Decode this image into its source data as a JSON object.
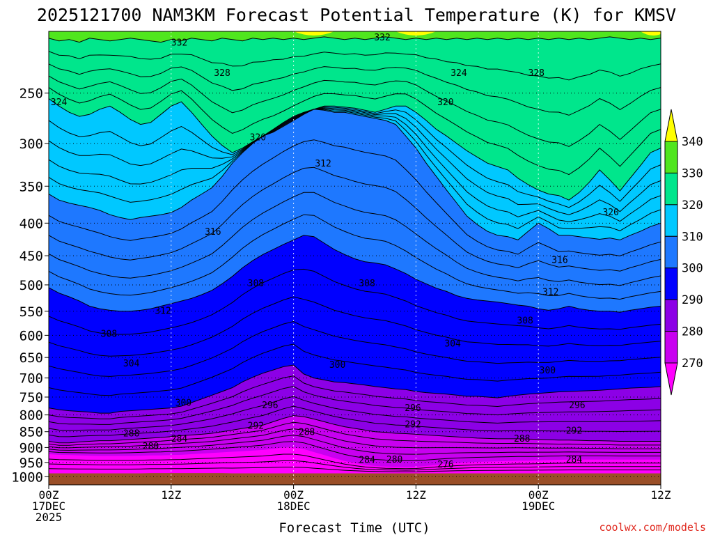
{
  "chart_data": {
    "type": "contour",
    "title": "2025121700 NAM3KM Forecast Potential Temperature (K) for KMSV",
    "xlabel": "Forecast Time (UTC)",
    "ylabel": "",
    "credit": "coolwx.com/models",
    "x_hours": [
      0,
      12,
      24,
      36,
      48,
      60
    ],
    "x_tick_labels": [
      {
        "hour": 0,
        "line1": "00Z",
        "line2": "17DEC",
        "line3": "2025"
      },
      {
        "hour": 12,
        "line1": "12Z",
        "line2": "",
        "line3": ""
      },
      {
        "hour": 24,
        "line1": "00Z",
        "line2": "18DEC",
        "line3": ""
      },
      {
        "hour": 36,
        "line1": "12Z",
        "line2": "",
        "line3": ""
      },
      {
        "hour": 48,
        "line1": "00Z",
        "line2": "19DEC",
        "line3": ""
      },
      {
        "hour": 60,
        "line1": "12Z",
        "line2": "",
        "line3": ""
      }
    ],
    "xlim": [
      0,
      60
    ],
    "y_pressure_ticks": [
      250,
      300,
      350,
      400,
      450,
      500,
      550,
      600,
      650,
      700,
      750,
      800,
      850,
      900,
      950,
      1000
    ],
    "ylim_hpa": [
      200,
      1030
    ],
    "surface_hpa": 985,
    "colorbar": {
      "levels": [
        270,
        280,
        290,
        300,
        310,
        320,
        330,
        340
      ],
      "colors": [
        "#ff00ff",
        "#c800f0",
        "#8c00e6",
        "#0000ff",
        "#1e78ff",
        "#00c8ff",
        "#00e68c",
        "#50e61e",
        "#ffff00"
      ],
      "underflow_color": "#ff00ff",
      "overflow_color": "#ffff00"
    },
    "contour_interval": 4,
    "contour_labels": [
      {
        "value": "332",
        "hour": 12.8,
        "hpa": 208
      },
      {
        "value": "332",
        "hour": 32.7,
        "hpa": 204
      },
      {
        "value": "328",
        "hour": 17.0,
        "hpa": 232
      },
      {
        "value": "324",
        "hour": 40.2,
        "hpa": 232
      },
      {
        "value": "328",
        "hour": 47.8,
        "hpa": 232
      },
      {
        "value": "324",
        "hour": 1.0,
        "hpa": 258
      },
      {
        "value": "320",
        "hour": 38.9,
        "hpa": 258
      },
      {
        "value": "320",
        "hour": 20.5,
        "hpa": 293
      },
      {
        "value": "312",
        "hour": 26.9,
        "hpa": 322
      },
      {
        "value": "320",
        "hour": 55.1,
        "hpa": 384
      },
      {
        "value": "316",
        "hour": 16.1,
        "hpa": 412
      },
      {
        "value": "316",
        "hour": 50.1,
        "hpa": 456
      },
      {
        "value": "308",
        "hour": 20.3,
        "hpa": 496
      },
      {
        "value": "308",
        "hour": 31.2,
        "hpa": 496
      },
      {
        "value": "312",
        "hour": 49.2,
        "hpa": 512
      },
      {
        "value": "312",
        "hour": 11.2,
        "hpa": 548
      },
      {
        "value": "308",
        "hour": 46.7,
        "hpa": 568
      },
      {
        "value": "308",
        "hour": 5.9,
        "hpa": 596
      },
      {
        "value": "304",
        "hour": 39.6,
        "hpa": 617
      },
      {
        "value": "304",
        "hour": 8.1,
        "hpa": 663
      },
      {
        "value": "300",
        "hour": 28.3,
        "hpa": 666
      },
      {
        "value": "300",
        "hour": 48.9,
        "hpa": 680
      },
      {
        "value": "300",
        "hour": 13.2,
        "hpa": 764
      },
      {
        "value": "296",
        "hour": 21.7,
        "hpa": 771
      },
      {
        "value": "296",
        "hour": 35.7,
        "hpa": 779
      },
      {
        "value": "296",
        "hour": 51.8,
        "hpa": 771
      },
      {
        "value": "292",
        "hour": 20.3,
        "hpa": 830
      },
      {
        "value": "292",
        "hour": 35.7,
        "hpa": 826
      },
      {
        "value": "292",
        "hour": 51.5,
        "hpa": 845
      },
      {
        "value": "288",
        "hour": 8.1,
        "hpa": 854
      },
      {
        "value": "288",
        "hour": 25.3,
        "hpa": 850
      },
      {
        "value": "288",
        "hour": 46.4,
        "hpa": 870
      },
      {
        "value": "284",
        "hour": 12.8,
        "hpa": 870
      },
      {
        "value": "280",
        "hour": 10.0,
        "hpa": 894
      },
      {
        "value": "284",
        "hour": 31.2,
        "hpa": 940
      },
      {
        "value": "280",
        "hour": 33.9,
        "hpa": 938
      },
      {
        "value": "284",
        "hour": 51.5,
        "hpa": 938
      },
      {
        "value": "276",
        "hour": 38.9,
        "hpa": 955
      }
    ]
  }
}
